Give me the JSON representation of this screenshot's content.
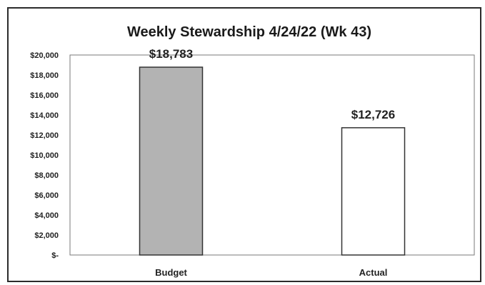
{
  "chart_data": {
    "type": "bar",
    "title": "Weekly Stewardship 4/24/22 (Wk 43)",
    "categories": [
      "Budget",
      "Actual"
    ],
    "values": [
      18783,
      12726
    ],
    "data_labels": [
      "$18,783",
      "$12,726"
    ],
    "bar_colors": [
      "#b3b3b3",
      "#ffffff"
    ],
    "bar_stroke": "#333333",
    "xlabel": "",
    "ylabel": "",
    "ylim": [
      0,
      20000
    ],
    "y_ticks": [
      0,
      2000,
      4000,
      6000,
      8000,
      10000,
      12000,
      14000,
      16000,
      18000,
      20000
    ],
    "y_tick_labels": [
      "$-",
      "$2,000",
      "$4,000",
      "$6,000",
      "$8,000",
      "$10,000",
      "$12,000",
      "$14,000",
      "$16,000",
      "$18,000",
      "$20,000"
    ],
    "grid": false,
    "legend": "none"
  }
}
